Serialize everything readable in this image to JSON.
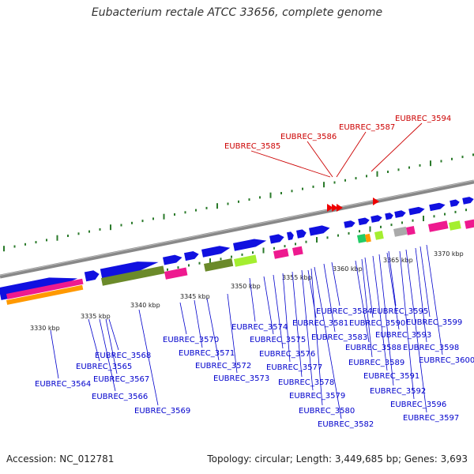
{
  "title": "Eubacterium rectale ATCC 33656, complete genome",
  "footer": {
    "accession": "Accession: NC_012781",
    "summary": "Topology: circular; Length: 3,449,685 bp; Genes: 3,693"
  },
  "colors": {
    "forward_gene": "#1010e0",
    "highlight_gene": "#ee0000",
    "label": "#0000cc",
    "highlight_label": "#cc0000",
    "tick": "#2a7a2a",
    "backbone": "#888888",
    "magenta_block": "#ee1a8f",
    "orange_block": "#ff9900",
    "olive_block": "#6b8a2a",
    "lime_block": "#a4ee30"
  },
  "scale_labels": [
    "3330 kbp",
    "3335 kbp",
    "3340 kbp",
    "3345 kbp",
    "3350 kbp",
    "3355 kbp",
    "3360 kbp",
    "3365 kbp",
    "3370 kbp"
  ],
  "highlighted_genes": [
    "EUBREC_3585",
    "EUBREC_3586",
    "EUBREC_3587",
    "EUBREC_3594"
  ],
  "genes": [
    "EUBREC_3564",
    "EUBREC_3565",
    "EUBREC_3566",
    "EUBREC_3567",
    "EUBREC_3568",
    "EUBREC_3569",
    "EUBREC_3570",
    "EUBREC_3571",
    "EUBREC_3572",
    "EUBREC_3573",
    "EUBREC_3574",
    "EUBREC_3575",
    "EUBREC_3576",
    "EUBREC_3577",
    "EUBREC_3578",
    "EUBREC_3579",
    "EUBREC_3580",
    "EUBREC_3581",
    "EUBREC_3582",
    "EUBREC_3583",
    "EUBREC_3584",
    "EUBREC_3588",
    "EUBREC_3589",
    "EUBREC_3590",
    "EUBREC_3591",
    "EUBREC_3592",
    "EUBREC_3593",
    "EUBREC_3595",
    "EUBREC_3596",
    "EUBREC_3597",
    "EUBREC_3598",
    "EUBREC_3599",
    "EUBREC_3600"
  ]
}
